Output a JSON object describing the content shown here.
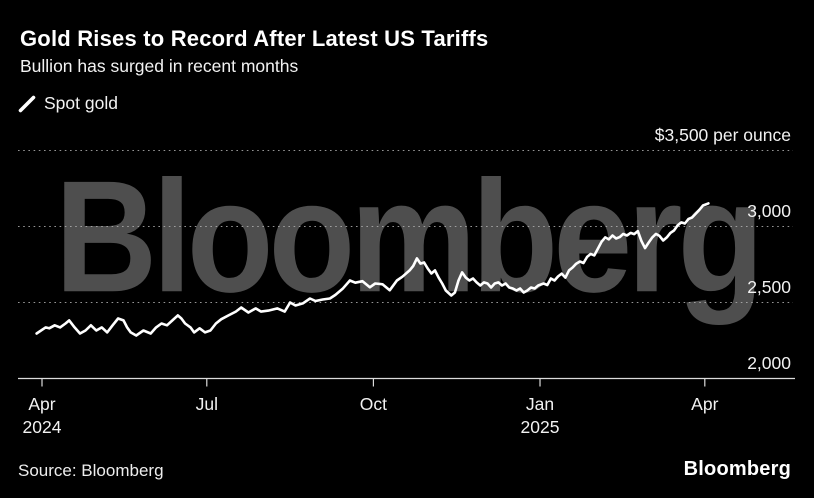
{
  "header": {
    "title": "Gold Rises to Record After Latest US Tariffs",
    "subtitle": "Bullion has surged in recent months"
  },
  "legend": {
    "marker_icon": "diagonal-line",
    "label": "Spot gold"
  },
  "watermark_text": "Bloomberg",
  "footer": {
    "source": "Source: Bloomberg",
    "brand": "Bloomberg"
  },
  "colors": {
    "background": "#000000",
    "line": "#ffffff",
    "watermark": "#4e4e4e",
    "grid": "#b0b0b0",
    "axis": "#dcdcdc",
    "text": "#f2f2f2"
  },
  "chart_data": {
    "type": "line",
    "title": "Gold Rises to Record After Latest US Tariffs",
    "subtitle": "Bullion has surged in recent months",
    "source": "Bloomberg",
    "legend_position": "top-left",
    "grid": "dotted-horizontal",
    "y_axis": {
      "unit": "$ per ounce",
      "range": [
        2000,
        3500
      ],
      "ticks": [
        {
          "value": 3500,
          "label": "$3,500 per ounce",
          "gridline": "dotted"
        },
        {
          "value": 3000,
          "label": "3,000",
          "gridline": "dotted"
        },
        {
          "value": 2500,
          "label": "2,500",
          "gridline": "dotted"
        },
        {
          "value": 2000,
          "label": "2,000",
          "gridline": "solid-baseline"
        }
      ]
    },
    "x_axis": {
      "start_date": "2024-04-01",
      "end_date": "2025-04-04",
      "ticks": [
        {
          "day": 0,
          "label": "Apr",
          "year": "2024"
        },
        {
          "day": 91,
          "label": "Jul"
        },
        {
          "day": 183,
          "label": "Oct"
        },
        {
          "day": 275,
          "label": "Jan",
          "year": "2025"
        },
        {
          "day": 366,
          "label": "Apr"
        }
      ]
    },
    "series": [
      {
        "name": "Spot gold",
        "color": "#ffffff",
        "points_day_price": [
          [
            -3,
            2296
          ],
          [
            2,
            2336
          ],
          [
            4,
            2330
          ],
          [
            7,
            2350
          ],
          [
            10,
            2336
          ],
          [
            13,
            2362
          ],
          [
            15,
            2382
          ],
          [
            18,
            2336
          ],
          [
            21,
            2296
          ],
          [
            24,
            2316
          ],
          [
            27,
            2350
          ],
          [
            30,
            2316
          ],
          [
            33,
            2336
          ],
          [
            36,
            2303
          ],
          [
            39,
            2350
          ],
          [
            42,
            2395
          ],
          [
            45,
            2382
          ],
          [
            47,
            2336
          ],
          [
            49,
            2303
          ],
          [
            52,
            2283
          ],
          [
            56,
            2316
          ],
          [
            60,
            2296
          ],
          [
            63,
            2336
          ],
          [
            66,
            2362
          ],
          [
            69,
            2350
          ],
          [
            72,
            2382
          ],
          [
            75,
            2415
          ],
          [
            77,
            2395
          ],
          [
            79,
            2362
          ],
          [
            82,
            2336
          ],
          [
            84,
            2303
          ],
          [
            87,
            2330
          ],
          [
            90,
            2303
          ],
          [
            93,
            2316
          ],
          [
            96,
            2362
          ],
          [
            99,
            2390
          ],
          [
            103,
            2415
          ],
          [
            107,
            2440
          ],
          [
            110,
            2467
          ],
          [
            114,
            2434
          ],
          [
            118,
            2461
          ],
          [
            121,
            2440
          ],
          [
            125,
            2447
          ],
          [
            130,
            2461
          ],
          [
            134,
            2440
          ],
          [
            137,
            2500
          ],
          [
            140,
            2480
          ],
          [
            144,
            2494
          ],
          [
            148,
            2526
          ],
          [
            151,
            2510
          ],
          [
            155,
            2520
          ],
          [
            159,
            2526
          ],
          [
            162,
            2550
          ],
          [
            166,
            2590
          ],
          [
            170,
            2645
          ],
          [
            173,
            2630
          ],
          [
            177,
            2640
          ],
          [
            181,
            2600
          ],
          [
            184,
            2625
          ],
          [
            188,
            2620
          ],
          [
            192,
            2580
          ],
          [
            196,
            2645
          ],
          [
            199,
            2670
          ],
          [
            203,
            2711
          ],
          [
            205,
            2740
          ],
          [
            207,
            2790
          ],
          [
            209,
            2756
          ],
          [
            211,
            2763
          ],
          [
            213,
            2724
          ],
          [
            215,
            2691
          ],
          [
            217,
            2711
          ],
          [
            219,
            2664
          ],
          [
            221,
            2625
          ],
          [
            223,
            2579
          ],
          [
            226,
            2546
          ],
          [
            228,
            2566
          ],
          [
            230,
            2645
          ],
          [
            232,
            2698
          ],
          [
            234,
            2664
          ],
          [
            236,
            2645
          ],
          [
            238,
            2658
          ],
          [
            240,
            2632
          ],
          [
            242,
            2612
          ],
          [
            244,
            2632
          ],
          [
            246,
            2625
          ],
          [
            248,
            2599
          ],
          [
            250,
            2625
          ],
          [
            252,
            2632
          ],
          [
            254,
            2612
          ],
          [
            256,
            2625
          ],
          [
            258,
            2599
          ],
          [
            260,
            2592
          ],
          [
            262,
            2579
          ],
          [
            264,
            2592
          ],
          [
            266,
            2566
          ],
          [
            268,
            2579
          ],
          [
            270,
            2599
          ],
          [
            272,
            2592
          ],
          [
            274,
            2612
          ],
          [
            277,
            2625
          ],
          [
            279,
            2615
          ],
          [
            281,
            2658
          ],
          [
            283,
            2645
          ],
          [
            285,
            2672
          ],
          [
            287,
            2690
          ],
          [
            289,
            2664
          ],
          [
            291,
            2711
          ],
          [
            293,
            2730
          ],
          [
            295,
            2755
          ],
          [
            297,
            2770
          ],
          [
            299,
            2760
          ],
          [
            301,
            2800
          ],
          [
            303,
            2820
          ],
          [
            305,
            2810
          ],
          [
            307,
            2855
          ],
          [
            309,
            2900
          ],
          [
            311,
            2928
          ],
          [
            313,
            2915
          ],
          [
            315,
            2941
          ],
          [
            317,
            2921
          ],
          [
            319,
            2930
          ],
          [
            321,
            2951
          ],
          [
            323,
            2941
          ],
          [
            325,
            2958
          ],
          [
            327,
            2950
          ],
          [
            329,
            2970
          ],
          [
            331,
            2905
          ],
          [
            333,
            2858
          ],
          [
            335,
            2895
          ],
          [
            337,
            2928
          ],
          [
            339,
            2951
          ],
          [
            341,
            2938
          ],
          [
            343,
            2908
          ],
          [
            345,
            2928
          ],
          [
            347,
            2958
          ],
          [
            349,
            2974
          ],
          [
            351,
            3007
          ],
          [
            353,
            3027
          ],
          [
            355,
            3020
          ],
          [
            357,
            3050
          ],
          [
            359,
            3059
          ],
          [
            361,
            3085
          ],
          [
            363,
            3110
          ],
          [
            365,
            3138
          ],
          [
            368,
            3152
          ]
        ]
      }
    ]
  }
}
